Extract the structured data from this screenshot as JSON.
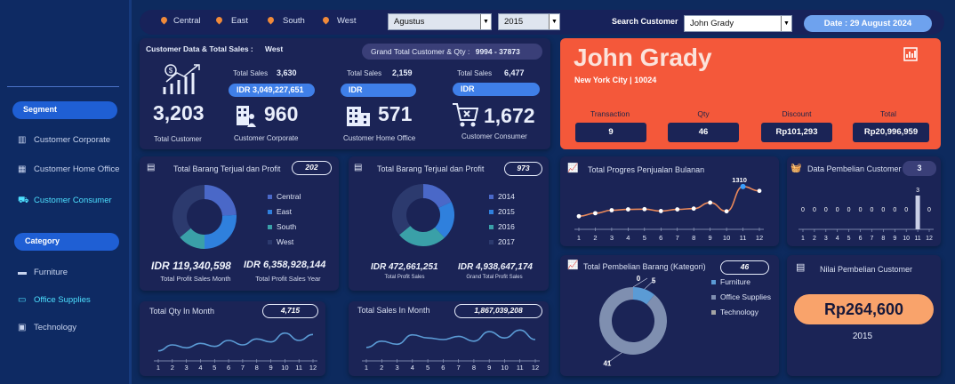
{
  "filters": {
    "regions": [
      "Central",
      "East",
      "South",
      "West"
    ],
    "month": "Agustus",
    "year": "2015",
    "search_label": "Search Customer",
    "search_value": "John Grady",
    "date_label": "Date : 29 August 2024"
  },
  "sidebar": {
    "segment_title": "Segment",
    "segments": [
      "Customer Corporate",
      "Customer Home Office",
      "Customer Consumer"
    ],
    "category_title": "Category",
    "categories": [
      "Furniture",
      "Office Supplies",
      "Technology"
    ]
  },
  "summary": {
    "title": "Customer Data & Total Sales :",
    "region": "West",
    "grand_label": "Grand Total Customer & Qty :",
    "grand_value": "9994 - 37873",
    "total_customer": "3,203",
    "total_customer_label": "Total Customer",
    "corporate": {
      "sales_label": "Total Sales",
      "sales": "3,630",
      "idr": "IDR 3,049,227,651",
      "value": "960",
      "label": "Customer Corporate"
    },
    "home_office": {
      "sales_label": "Total Sales",
      "sales": "2,159",
      "idr": "IDR",
      "value": "571",
      "label": "Customer Home Office"
    },
    "consumer": {
      "sales_label": "Total Sales",
      "sales": "6,477",
      "idr": "IDR",
      "value": "1,672",
      "label": "Customer Consumer"
    }
  },
  "customer": {
    "name": "John Grady",
    "location": "New York City | 10024",
    "transaction_label": "Transaction",
    "transaction": "9",
    "qty_label": "Qty",
    "qty": "46",
    "discount_label": "Discount",
    "discount": "Rp101,293",
    "total_label": "Total",
    "total": "Rp20,996,959"
  },
  "card_region": {
    "title": "Total Barang Terjual dan Profit",
    "badge": "202",
    "legend": [
      "Central",
      "East",
      "South",
      "West"
    ],
    "kpi1": "IDR 119,340,598",
    "kpi1_label": "Total Profit Sales Month",
    "kpi2": "IDR 6,358,928,144",
    "kpi2_label": "Total Profit Sales Year"
  },
  "card_year": {
    "title": "Total Barang Terjual dan Profit",
    "badge": "973",
    "legend": [
      "2014",
      "2015",
      "2016",
      "2017"
    ],
    "kpi1": "IDR 472,661,251",
    "kpi1_label": "Total Profit Sales",
    "kpi2": "IDR 4,938,647,174",
    "kpi2_label": "Grand Total Profit Sales"
  },
  "card_qty": {
    "title": "Total Qty In  Month",
    "badge": "4,715"
  },
  "card_sales": {
    "title": "Total Sales  In Month",
    "badge": "1,867,039,208"
  },
  "card_progress": {
    "title": "Total Progres Penjualan Bulanan"
  },
  "card_pembelian": {
    "title": "Data Pembelian Customer",
    "badge": "3"
  },
  "card_kategori": {
    "title": "Total Pembelian Barang (Kategori)",
    "badge": "46",
    "legend": [
      "Furniture",
      "Office Supplies",
      "Technology"
    ]
  },
  "card_nilai": {
    "title": "Nilai Pembelian Customer",
    "value": "Rp264,600",
    "year": "2015"
  },
  "colors": {
    "orange": "#f4583a",
    "accent_blue": "#3f7fe8",
    "card": "#1b2456",
    "line_orange": "#e9885a"
  },
  "chart_data": [
    {
      "type": "pie",
      "title": "",
      "categories": [
        "Central",
        "East",
        "South",
        "West"
      ],
      "values": [
        24,
        26,
        14,
        36
      ],
      "colors": [
        "#4a68c8",
        "#2f80dd",
        "#3aa0a8",
        "#2c3a6e"
      ]
    },
    {
      "type": "pie",
      "title": "",
      "categories": [
        "2014",
        "2015",
        "2016",
        "2017"
      ],
      "values": [
        18,
        20,
        26,
        36
      ],
      "colors": [
        "#4a68c8",
        "#2f80dd",
        "#3aa0a8",
        "#2c3a6e"
      ]
    },
    {
      "type": "line",
      "title": "",
      "x": [
        "1",
        "2",
        "3",
        "4",
        "5",
        "6",
        "7",
        "8",
        "9",
        "10",
        "11",
        "12"
      ],
      "values": [
        2,
        6,
        4,
        7,
        5,
        9,
        6,
        10,
        8,
        14,
        9,
        13
      ],
      "ylim": [
        0,
        18
      ]
    },
    {
      "type": "line",
      "title": "",
      "x": [
        "1",
        "2",
        "3",
        "4",
        "5",
        "6",
        "7",
        "8",
        "9",
        "10",
        "11",
        "12"
      ],
      "values": [
        4,
        8,
        6,
        12,
        10,
        9,
        11,
        8,
        14,
        10,
        15,
        9
      ],
      "ylim": [
        0,
        18
      ]
    },
    {
      "type": "line",
      "title": "",
      "x": [
        "1",
        "2",
        "3",
        "4",
        "5",
        "6",
        "7",
        "8",
        "9",
        "10",
        "11",
        "12"
      ],
      "values": [
        220,
        330,
        440,
        470,
        480,
        410,
        470,
        500,
        720,
        400,
        1310,
        1150
      ],
      "ylim": [
        0,
        1500
      ],
      "annotations": [
        {
          "x": "11",
          "label": "1310"
        }
      ]
    },
    {
      "type": "bar",
      "title": "",
      "categories": [
        "1",
        "2",
        "3",
        "4",
        "5",
        "6",
        "7",
        "8",
        "9",
        "10",
        "11",
        "12"
      ],
      "values": [
        0,
        0,
        0,
        0,
        0,
        0,
        0,
        0,
        0,
        0,
        3,
        0
      ],
      "ylim": [
        0,
        3
      ]
    },
    {
      "type": "pie",
      "title": "",
      "categories": [
        "Furniture",
        "Office Supplies",
        "Technology"
      ],
      "values": [
        5,
        41,
        0
      ],
      "colors": [
        "#5b9bd5",
        "#7f8fb0",
        "#a5a5a5"
      ]
    }
  ]
}
